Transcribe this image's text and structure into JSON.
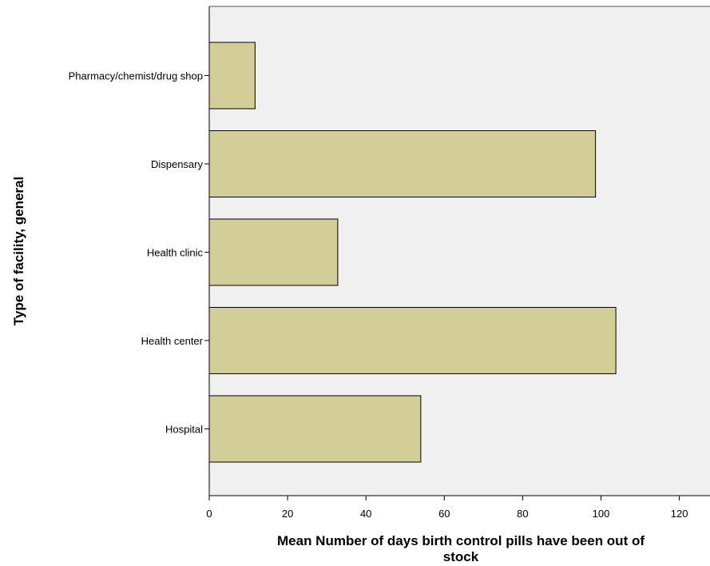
{
  "chart_data": {
    "type": "bar",
    "orientation": "horizontal",
    "categories": [
      "Pharmacy/chemist/drug shop",
      "Dispensary",
      "Health clinic",
      "Health center",
      "Hospital"
    ],
    "values": [
      11.7,
      98.6,
      32.8,
      103.8,
      54.0
    ],
    "xlabel_lines": [
      "Mean Number of days birth control pills have been out of",
      "stock"
    ],
    "ylabel": "Type of facility, general",
    "xticks": [
      "0",
      "20",
      "40",
      "60",
      "80",
      "100",
      "120"
    ],
    "xlim": [
      0,
      125
    ],
    "grid": false,
    "colors": {
      "bar_fill": "#d3cd97",
      "bar_stroke": "#000000",
      "plot_background": "#f0f0f0"
    }
  }
}
